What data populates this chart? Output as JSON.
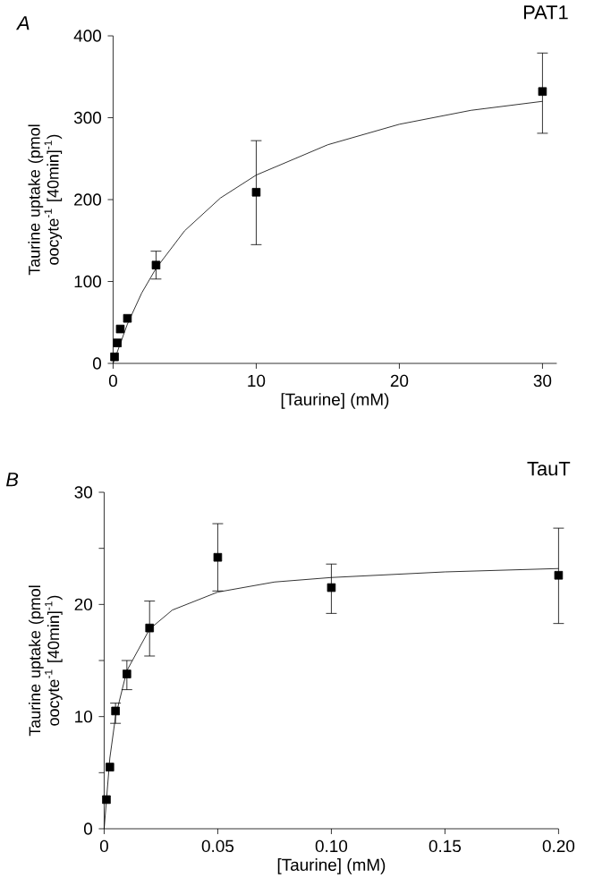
{
  "chart_data": [
    {
      "type": "scatter",
      "title": "PAT1",
      "annotations": [
        "A"
      ],
      "xlabel": "[Taurine] (mM)",
      "ylabel": "Taurine uptake (pmol oocyte$^{-1}$ [40min]$^{-1}$)",
      "xlim": [
        0,
        31
      ],
      "ylim": [
        0,
        400
      ],
      "xticks": [
        0,
        10,
        20,
        30
      ],
      "yticks": [
        0,
        100,
        200,
        300,
        400
      ],
      "series": [
        {
          "marker": "square",
          "color": "#000000",
          "x": [
            0.1,
            0.3,
            0.5,
            1,
            3,
            10,
            30
          ],
          "values": [
            8,
            25,
            42,
            55,
            120,
            209,
            332
          ],
          "errors": [
            null,
            null,
            null,
            null,
            [
              103,
              137
            ],
            [
              145,
              272
            ],
            [
              281,
              379
            ]
          ]
        },
        {
          "type": "line",
          "marker": "none",
          "color": "#000000",
          "x": [
            0,
            1,
            2,
            3,
            5,
            7.5,
            10,
            15,
            20,
            25,
            30
          ],
          "values": [
            0,
            48,
            86,
            116,
            162,
            202,
            230,
            267,
            292,
            309,
            320
          ]
        }
      ]
    },
    {
      "type": "scatter",
      "title": "TauT",
      "annotations": [
        "B"
      ],
      "xlabel": "[Taurine] (mM)",
      "ylabel": "Taurine uptake (pmol oocyte$^{-1}$ [40min]$^{-1}$)",
      "xlim": [
        0,
        0.2
      ],
      "ylim": [
        0,
        30
      ],
      "xticks": [
        0,
        0.05,
        {
          "value": 0.1,
          "label": "0.10"
        },
        0.15,
        {
          "value": 0.2,
          "label": "0.20"
        }
      ],
      "yticks": [
        0,
        {
          "value": 5,
          "label": null
        },
        10,
        {
          "value": 15,
          "label": null
        },
        20,
        {
          "value": 25,
          "label": null
        },
        30
      ],
      "series": [
        {
          "marker": "square",
          "color": "#000000",
          "x": [
            0.001,
            0.0025,
            0.005,
            0.01,
            0.02,
            0.05,
            0.1,
            0.2
          ],
          "values": [
            2.6,
            5.5,
            10.5,
            13.8,
            17.9,
            24.2,
            21.5,
            22.6
          ],
          "errors": [
            null,
            null,
            [
              9.4,
              11.2
            ],
            [
              12.4,
              15
            ],
            [
              15.4,
              20.3
            ],
            [
              21.2,
              27.2
            ],
            [
              19.2,
              23.6
            ],
            [
              18.3,
              26.8
            ]
          ]
        },
        {
          "type": "line",
          "marker": "none",
          "color": "#000000",
          "x": [
            0,
            0.0025,
            0.005,
            0.01,
            0.02,
            0.03,
            0.05,
            0.075,
            0.1,
            0.15,
            0.2
          ],
          "values": [
            0,
            6.3,
            10,
            14.1,
            17.8,
            19.5,
            21.1,
            22.0,
            22.4,
            22.9,
            23.2
          ]
        }
      ]
    }
  ]
}
